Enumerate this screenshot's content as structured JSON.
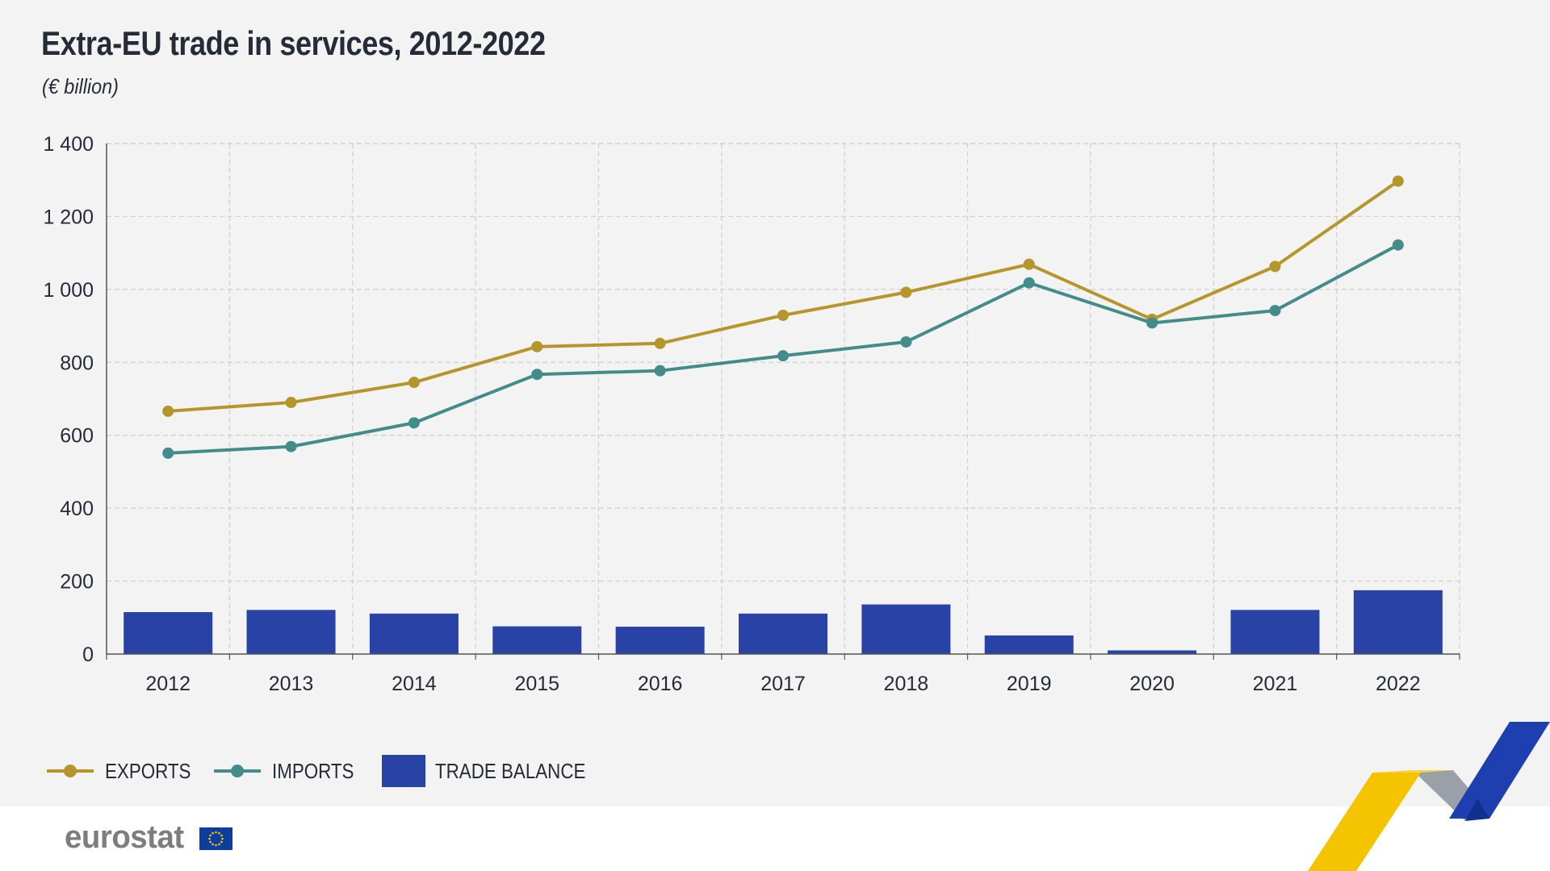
{
  "title": "Extra-EU trade in services, 2012-2022",
  "subtitle": "(€ billion)",
  "legend": {
    "exports": "EXPORTS",
    "imports": "IMPORTS",
    "balance": "TRADE BALANCE"
  },
  "logo_text": "eurostat",
  "colors": {
    "exports": "#b6962b",
    "imports": "#428c8a",
    "balance": "#2843a5",
    "grid": "#cfcfcf",
    "axis": "#555555",
    "text": "#262b38"
  },
  "chart_data": {
    "type": "bar",
    "categories": [
      "2012",
      "2013",
      "2014",
      "2015",
      "2016",
      "2017",
      "2018",
      "2019",
      "2020",
      "2021",
      "2022"
    ],
    "series": [
      {
        "name": "EXPORTS",
        "type": "line",
        "values": [
          666,
          690,
          745,
          843,
          852,
          929,
          992,
          1069,
          918,
          1063,
          1297
        ]
      },
      {
        "name": "IMPORTS",
        "type": "line",
        "values": [
          551,
          569,
          634,
          767,
          777,
          818,
          856,
          1018,
          908,
          942,
          1122
        ]
      },
      {
        "name": "TRADE BALANCE",
        "type": "bar",
        "values": [
          115,
          121,
          111,
          76,
          75,
          111,
          136,
          51,
          10,
          121,
          175
        ]
      }
    ],
    "y_ticks": [
      "0",
      "200",
      "400",
      "600",
      "800",
      "1 000",
      "1 200",
      "1 400"
    ],
    "ylim": [
      0,
      1400
    ],
    "grid": true,
    "legend_position": "bottom-left"
  }
}
